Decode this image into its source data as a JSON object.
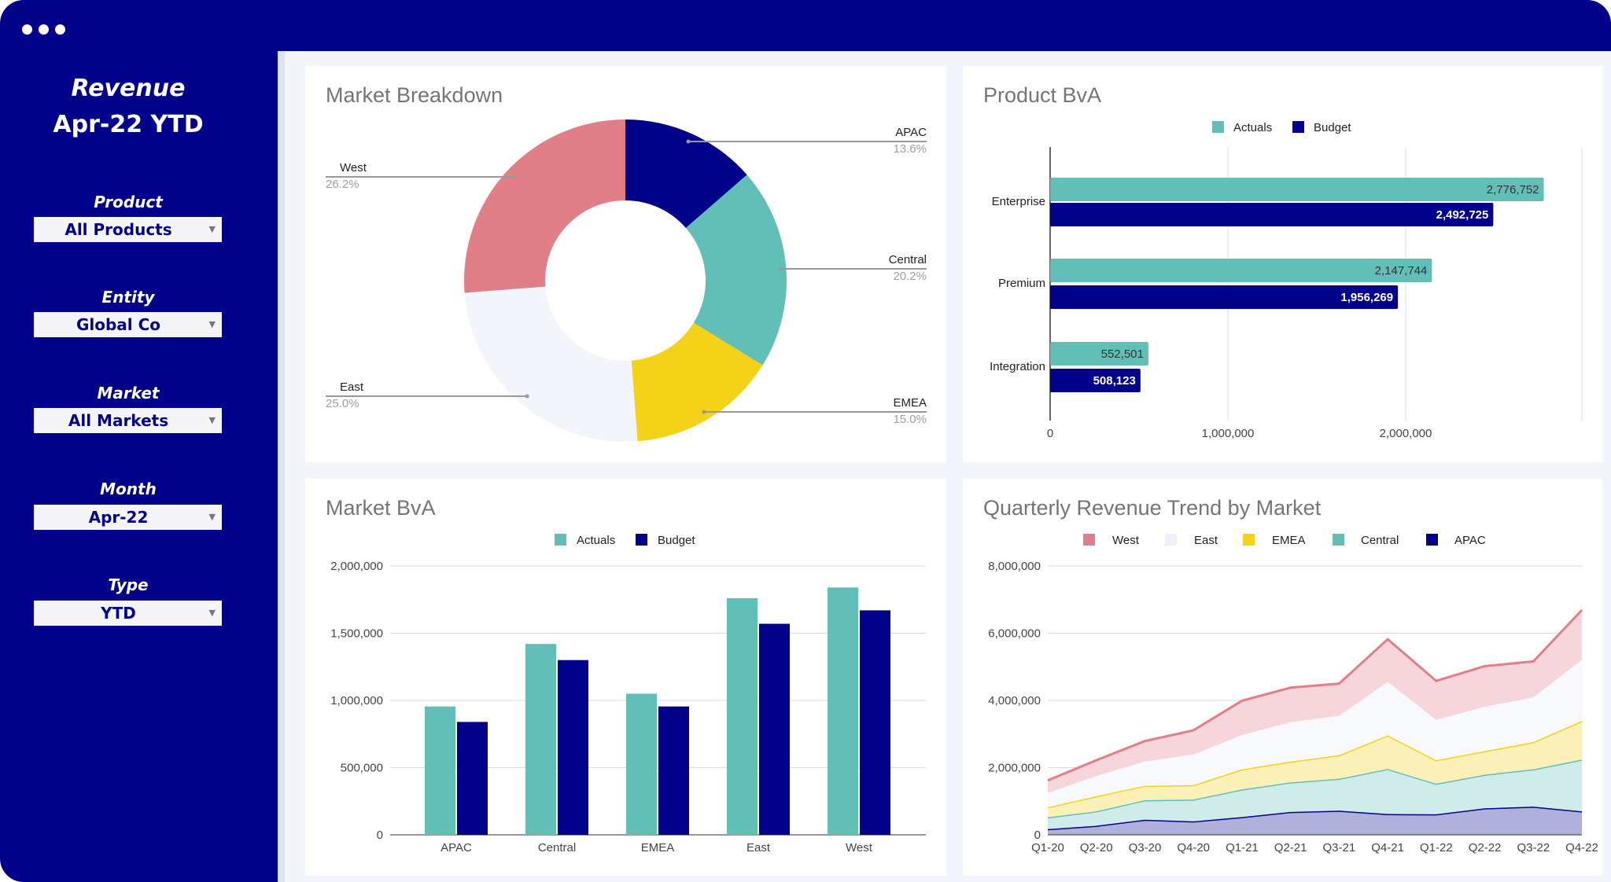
{
  "sidebar": {
    "title_line1": "Revenue",
    "title_line2": "Apr-22 YTD",
    "filters": [
      {
        "label": "Product",
        "value": "All Products"
      },
      {
        "label": "Entity",
        "value": "Global Co"
      },
      {
        "label": "Market",
        "value": "All Markets"
      },
      {
        "label": "Month",
        "value": "Apr-22"
      },
      {
        "label": "Type",
        "value": "YTD"
      }
    ]
  },
  "colors": {
    "navy": "#02028a",
    "teal": "#62bfb7",
    "pink": "#e07f87",
    "yellow": "#f4d218",
    "pale": "#f3f5fc"
  },
  "chart_data": [
    {
      "type": "pie",
      "title": "Market Breakdown",
      "donut": true,
      "slices": [
        {
          "label": "APAC",
          "value": 13.6,
          "pct": "13.6%",
          "color": "#02028a"
        },
        {
          "label": "Central",
          "value": 20.2,
          "pct": "20.2%",
          "color": "#62bfb7"
        },
        {
          "label": "EMEA",
          "value": 15.0,
          "pct": "15.0%",
          "color": "#f4d218"
        },
        {
          "label": "East",
          "value": 25.0,
          "pct": "25.0%",
          "color": "#f3f5fc"
        },
        {
          "label": "West",
          "value": 26.2,
          "pct": "26.2%",
          "color": "#e07f87"
        }
      ]
    },
    {
      "type": "bar",
      "orientation": "horizontal",
      "title": "Product BvA",
      "legend": "top",
      "categories": [
        "Enterprise",
        "Premium",
        "Integration"
      ],
      "series": [
        {
          "name": "Actuals",
          "color": "#62bfb7",
          "values": [
            2776752,
            2147744,
            552501
          ],
          "labels": [
            "2,776,752",
            "2,147,744",
            "552,501"
          ]
        },
        {
          "name": "Budget",
          "color": "#02028a",
          "values": [
            2492725,
            1956269,
            508123
          ],
          "labels": [
            "2,492,725",
            "1,956,269",
            "508,123"
          ]
        }
      ],
      "xlim": [
        0,
        3000000
      ],
      "xticks": [
        {
          "v": 0,
          "label": "0"
        },
        {
          "v": 1000000,
          "label": "1,000,000"
        },
        {
          "v": 2000000,
          "label": "2,000,000"
        }
      ]
    },
    {
      "type": "bar",
      "title": "Market BvA",
      "legend": "top",
      "categories": [
        "APAC",
        "Central",
        "EMEA",
        "East",
        "West"
      ],
      "series": [
        {
          "name": "Actuals",
          "color": "#62bfb7",
          "values": [
            955000,
            1420000,
            1050000,
            1760000,
            1840000
          ]
        },
        {
          "name": "Budget",
          "color": "#02028a",
          "values": [
            840000,
            1300000,
            955000,
            1570000,
            1670000
          ]
        }
      ],
      "ylim": [
        0,
        2000000
      ],
      "yticks": [
        {
          "v": 0,
          "label": "0"
        },
        {
          "v": 500000,
          "label": "500,000"
        },
        {
          "v": 1000000,
          "label": "1,000,000"
        },
        {
          "v": 1500000,
          "label": "1,500,000"
        },
        {
          "v": 2000000,
          "label": "2,000,000"
        }
      ]
    },
    {
      "type": "area",
      "stacked": true,
      "title": "Quarterly Revenue Trend by Market",
      "legend": "top",
      "x": [
        "Q1-20",
        "Q2-20",
        "Q3-20",
        "Q4-20",
        "Q1-21",
        "Q2-21",
        "Q3-21",
        "Q4-21",
        "Q1-22",
        "Q2-22",
        "Q3-22",
        "Q4-22"
      ],
      "series": [
        {
          "name": "APAC",
          "color": "#02028a",
          "fill": "#b0b0dc",
          "values": [
            170000,
            270000,
            450000,
            400000,
            530000,
            680000,
            720000,
            620000,
            610000,
            790000,
            840000,
            700000
          ]
        },
        {
          "name": "Central",
          "color": "#62bfb7",
          "fill": "#d0ecea",
          "values": [
            350000,
            430000,
            580000,
            650000,
            820000,
            880000,
            950000,
            1340000,
            910000,
            1000000,
            1110000,
            1540000
          ]
        },
        {
          "name": "EMEA",
          "color": "#f4d218",
          "fill": "#fbf0b8",
          "values": [
            300000,
            450000,
            430000,
            430000,
            600000,
            620000,
            700000,
            1000000,
            700000,
            700000,
            810000,
            1150000
          ]
        },
        {
          "name": "East",
          "color": "#f3f5fc",
          "fill": "#f8f9fd",
          "values": [
            430000,
            600000,
            720000,
            910000,
            1020000,
            1170000,
            1170000,
            1590000,
            1200000,
            1320000,
            1330000,
            1820000
          ]
        },
        {
          "name": "West",
          "color": "#e07f87",
          "fill": "#f6d6da",
          "values": [
            370000,
            470000,
            610000,
            720000,
            1020000,
            1030000,
            960000,
            1270000,
            1160000,
            1210000,
            1070000,
            1480000
          ]
        }
      ],
      "legend_order": [
        "West",
        "East",
        "EMEA",
        "Central",
        "APAC"
      ],
      "ylim": [
        0,
        8000000
      ],
      "yticks": [
        {
          "v": 0,
          "label": "0"
        },
        {
          "v": 2000000,
          "label": "2,000,000"
        },
        {
          "v": 4000000,
          "label": "4,000,000"
        },
        {
          "v": 6000000,
          "label": "6,000,000"
        },
        {
          "v": 8000000,
          "label": "8,000,000"
        }
      ]
    }
  ]
}
